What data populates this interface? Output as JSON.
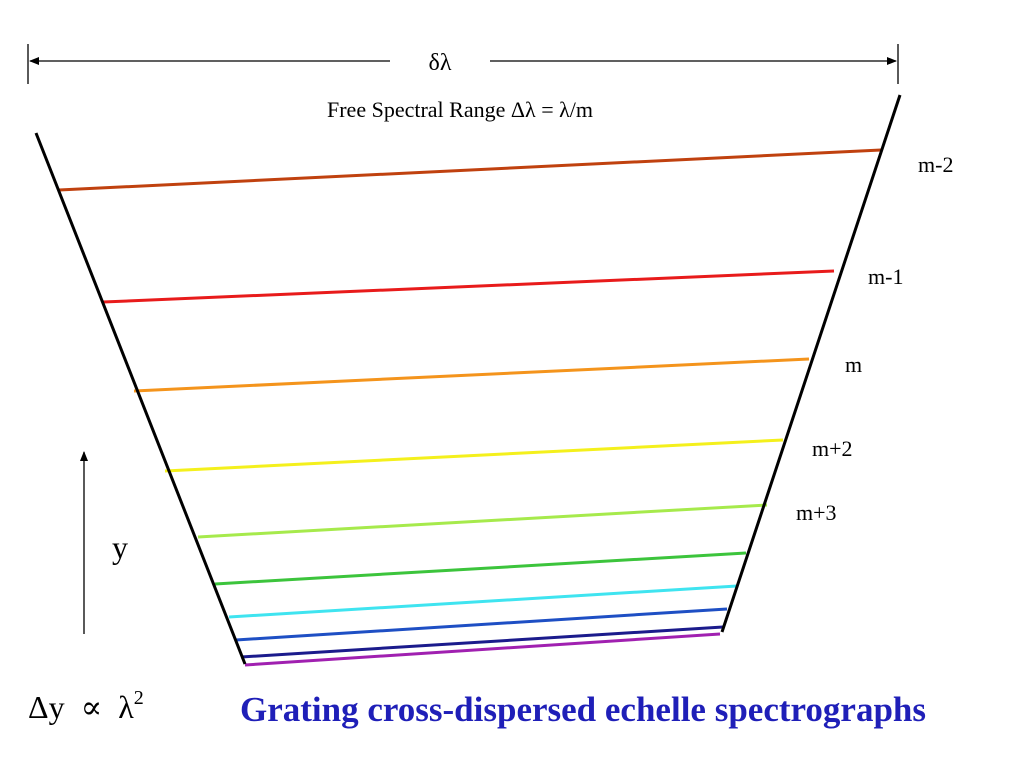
{
  "header": {
    "delta_lambda_label": "δλ",
    "fsr_label": "Free Spectral Range Δλ = λ/m"
  },
  "orders": [
    {
      "label": "m-2",
      "color": "#c0410f"
    },
    {
      "label": "m-1",
      "color": "#e81b1b"
    },
    {
      "label": "m",
      "color": "#f4941c"
    },
    {
      "label": "m+2",
      "color": "#f4f01c"
    },
    {
      "label": "m+3",
      "color": "#a6ea4c"
    },
    {
      "label": "",
      "color": "#3cc43c"
    },
    {
      "label": "",
      "color": "#3fe4f0"
    },
    {
      "label": "",
      "color": "#1e4fc4"
    },
    {
      "label": "",
      "color": "#1b1b8c"
    },
    {
      "label": "",
      "color": "#a020b0"
    }
  ],
  "axis": {
    "y_label": "y"
  },
  "formula": {
    "lhs": "Δy",
    "relation": "∝",
    "rhs_base": "λ",
    "rhs_exp": "2"
  },
  "title": "Grating cross-dispersed echelle spectrographs",
  "colors": {
    "title": "#1f1fb8",
    "lines": "#000000"
  }
}
